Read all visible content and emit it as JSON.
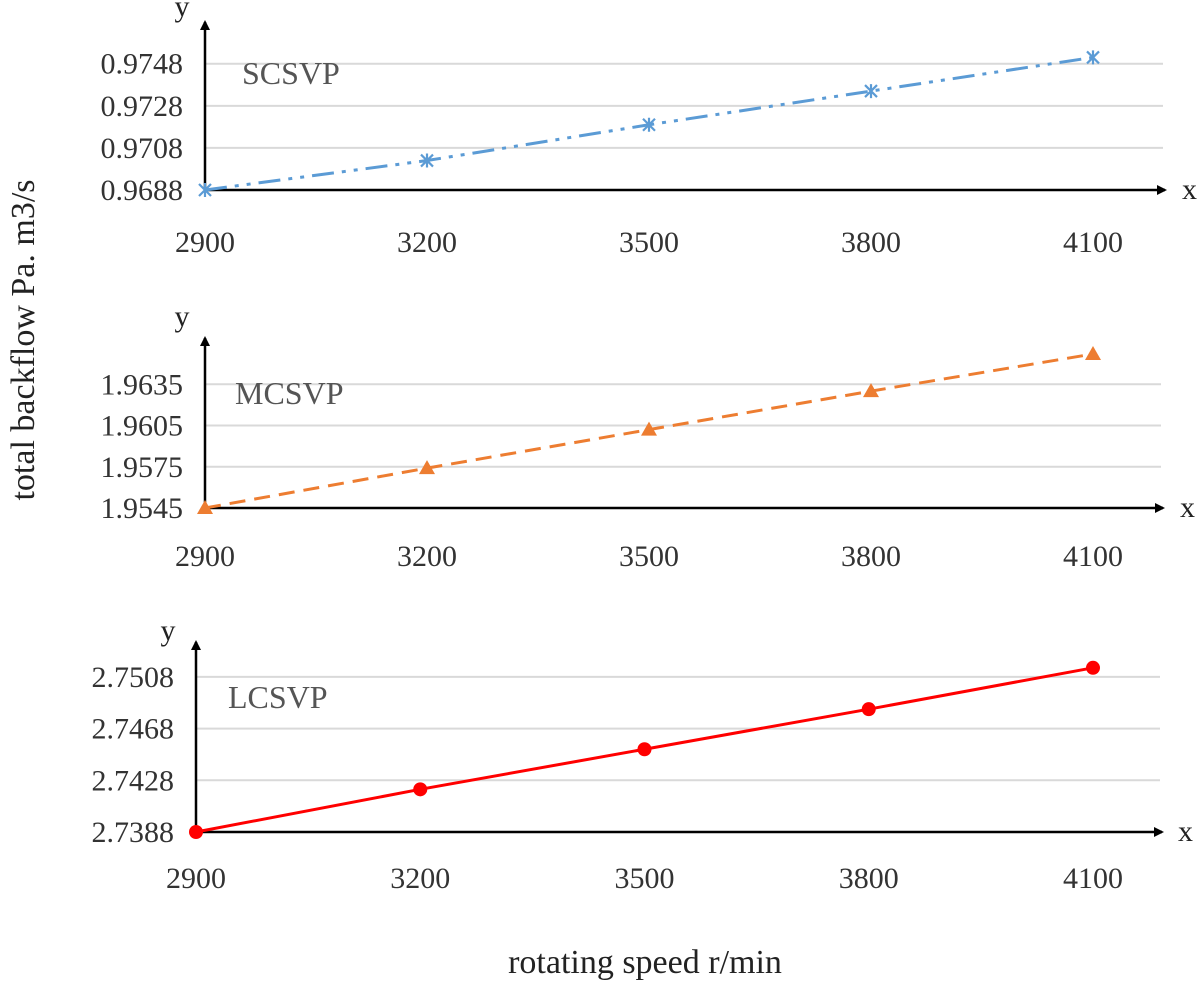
{
  "figure": {
    "ylabel": "total backflow  Pa. m3/s",
    "xlabel": "rotating speed  r/min"
  },
  "chart_data": [
    {
      "type": "line",
      "title": "SCSVP",
      "x_axis_letter": "x",
      "y_axis_letter": "y",
      "x": [
        2900,
        3200,
        3500,
        3800,
        4100
      ],
      "xtick_labels": [
        "2900",
        "3200",
        "3500",
        "3800",
        "4100"
      ],
      "ytick_values": [
        0.9688,
        0.9708,
        0.9728,
        0.9748
      ],
      "ytick_labels": [
        "0.9688",
        "0.9708",
        "0.9728",
        "0.9748"
      ],
      "ylim": [
        0.9688,
        0.9755
      ],
      "series": [
        {
          "name": "SCSVP",
          "values": [
            0.9688,
            0.9702,
            0.9719,
            0.9735,
            0.9751
          ],
          "color": "#5b9bd5",
          "marker": "asterisk",
          "line_style": "dash-dot-dot"
        }
      ]
    },
    {
      "type": "line",
      "title": "MCSVP",
      "x_axis_letter": "x",
      "y_axis_letter": "y",
      "x": [
        2900,
        3200,
        3500,
        3800,
        4100
      ],
      "xtick_labels": [
        "2900",
        "3200",
        "3500",
        "3800",
        "4100"
      ],
      "ytick_values": [
        1.9545,
        1.9575,
        1.9605,
        1.9635
      ],
      "ytick_labels": [
        "1.9545",
        "1.9575",
        "1.9605",
        "1.9635"
      ],
      "ylim": [
        1.9545,
        1.9665
      ],
      "series": [
        {
          "name": "MCSVP",
          "values": [
            1.9545,
            1.9574,
            1.9602,
            1.963,
            1.9657
          ],
          "color": "#ed7d31",
          "marker": "triangle",
          "line_style": "dashed"
        }
      ]
    },
    {
      "type": "line",
      "title": "LCSVP",
      "x_axis_letter": "x",
      "y_axis_letter": "y",
      "x": [
        2900,
        3200,
        3500,
        3800,
        4100
      ],
      "xtick_labels": [
        "2900",
        "3200",
        "3500",
        "3800",
        "4100"
      ],
      "ytick_values": [
        2.7388,
        2.7428,
        2.7468,
        2.7508
      ],
      "ytick_labels": [
        "2.7388",
        "2.7428",
        "2.7468",
        "2.7508"
      ],
      "ylim": [
        2.7388,
        2.7528
      ],
      "series": [
        {
          "name": "LCSVP",
          "values": [
            2.7388,
            2.7421,
            2.7452,
            2.7483,
            2.7515
          ],
          "color": "#ff0000",
          "marker": "circle",
          "line_style": "solid"
        }
      ]
    }
  ]
}
